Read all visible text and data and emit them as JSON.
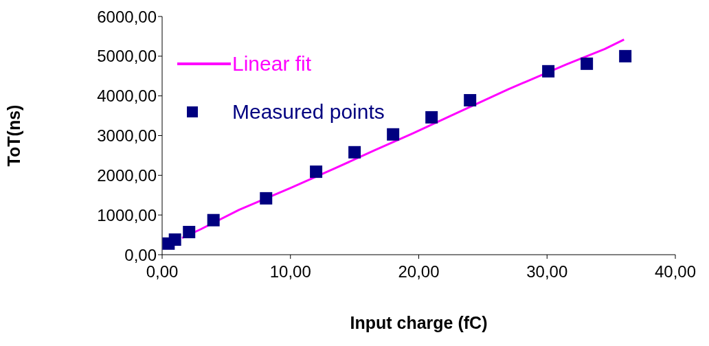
{
  "chart_data": {
    "type": "scatter",
    "xlabel": "Input charge (fC)",
    "ylabel": "ToT(ns)",
    "xlim": [
      0,
      40
    ],
    "xticks": [
      {
        "value": 0,
        "label": "0,00"
      },
      {
        "value": 10,
        "label": "10,00"
      },
      {
        "value": 20,
        "label": "20,00"
      },
      {
        "value": 30,
        "label": "30,00"
      },
      {
        "value": 40,
        "label": "40,00"
      }
    ],
    "ylim": [
      0,
      6000
    ],
    "yticks": [
      {
        "value": 0,
        "label": "0,00"
      },
      {
        "value": 1000,
        "label": "1000,00"
      },
      {
        "value": 2000,
        "label": "2000,00"
      },
      {
        "value": 3000,
        "label": "3000,00"
      },
      {
        "value": 4000,
        "label": "4000,00"
      },
      {
        "value": 5000,
        "label": "5000,00"
      },
      {
        "value": 6000,
        "label": "6000,00"
      }
    ],
    "grid": false,
    "legend": "top left",
    "series": [
      {
        "name": "Linear fit",
        "type": "line",
        "color": "#ff00ff",
        "marker": "none",
        "line_style": "solid",
        "x": [
          1.55,
          3,
          6,
          10,
          13.5,
          16.5,
          19.5,
          22.5,
          27,
          31.5,
          34.5,
          36
        ],
        "values": [
          420,
          640,
          1130,
          1680,
          2180,
          2620,
          3050,
          3500,
          4170,
          4790,
          5180,
          5420
        ]
      },
      {
        "name": "Measured points",
        "type": "scatter",
        "color": "#000080",
        "marker": "square",
        "x": [
          0.5,
          1,
          2.1,
          4,
          8.1,
          12,
          15,
          18,
          21,
          24,
          30.1,
          33.1,
          36.1
        ],
        "values": [
          280,
          380,
          570,
          870,
          1420,
          2090,
          2580,
          3030,
          3460,
          3890,
          4620,
          4810,
          5000
        ]
      }
    ]
  }
}
